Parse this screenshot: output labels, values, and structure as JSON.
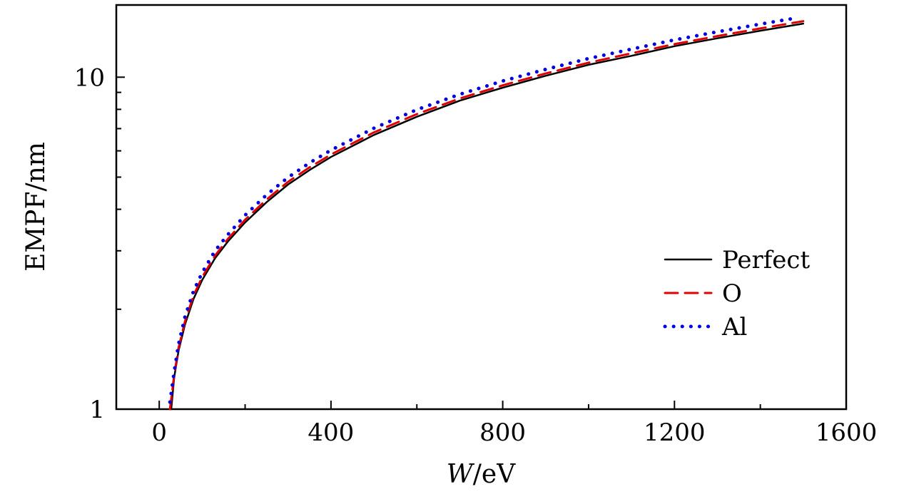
{
  "chart_data": {
    "type": "line",
    "title": "",
    "xlabel_var": "W",
    "xlabel_unit": "/eV",
    "ylabel": "EMPF/nm",
    "xlim": [
      -100,
      1600
    ],
    "ylim": [
      1,
      16.5
    ],
    "yscale": "log",
    "xticks": [
      0,
      400,
      800,
      1200,
      1600
    ],
    "xtick_labels": [
      "0",
      "400",
      "800",
      "1200",
      "1600"
    ],
    "xminor_ticks": [
      200,
      600,
      1000,
      1400
    ],
    "yticks": [
      1,
      10
    ],
    "ytick_labels": [
      "1",
      "10"
    ],
    "yminor_ticks": [
      2,
      3,
      4,
      5,
      6,
      7,
      8,
      9
    ],
    "grid": false,
    "legend_position": "bottom-right",
    "series": [
      {
        "name": "Perfect",
        "color": "#000000",
        "style": "solid",
        "x": [
          28,
          35,
          45,
          60,
          80,
          100,
          130,
          160,
          200,
          250,
          300,
          350,
          400,
          500,
          600,
          700,
          800,
          900,
          1000,
          1100,
          1200,
          1300,
          1400,
          1500
        ],
        "y": [
          1.0,
          1.25,
          1.5,
          1.8,
          2.15,
          2.45,
          2.85,
          3.2,
          3.65,
          4.2,
          4.75,
          5.25,
          5.75,
          6.7,
          7.6,
          8.5,
          9.3,
          10.1,
          10.9,
          11.6,
          12.4,
          13.1,
          13.8,
          14.5
        ]
      },
      {
        "name": "O",
        "color": "#e00000",
        "style": "dashed",
        "x": [
          25,
          35,
          45,
          60,
          80,
          100,
          130,
          160,
          200,
          250,
          300,
          350,
          400,
          500,
          600,
          700,
          800,
          900,
          1000,
          1100,
          1200,
          1300,
          1400,
          1500
        ],
        "y": [
          1.0,
          1.27,
          1.53,
          1.84,
          2.2,
          2.5,
          2.9,
          3.26,
          3.72,
          4.28,
          4.84,
          5.35,
          5.85,
          6.82,
          7.74,
          8.63,
          9.45,
          10.26,
          11.06,
          11.8,
          12.58,
          13.3,
          14.02,
          14.75
        ]
      },
      {
        "name": "Al",
        "color": "#0000e0",
        "style": "dotted",
        "x": [
          25,
          35,
          45,
          60,
          80,
          100,
          130,
          160,
          200,
          250,
          300,
          350,
          400,
          500,
          600,
          700,
          800,
          900,
          1000,
          1100,
          1200,
          1300,
          1400,
          1480
        ],
        "y": [
          1.05,
          1.3,
          1.57,
          1.9,
          2.27,
          2.58,
          3.0,
          3.36,
          3.84,
          4.42,
          4.99,
          5.52,
          6.03,
          7.02,
          7.98,
          8.88,
          9.74,
          10.56,
          11.38,
          12.15,
          12.95,
          13.7,
          14.45,
          15.05
        ]
      }
    ]
  }
}
